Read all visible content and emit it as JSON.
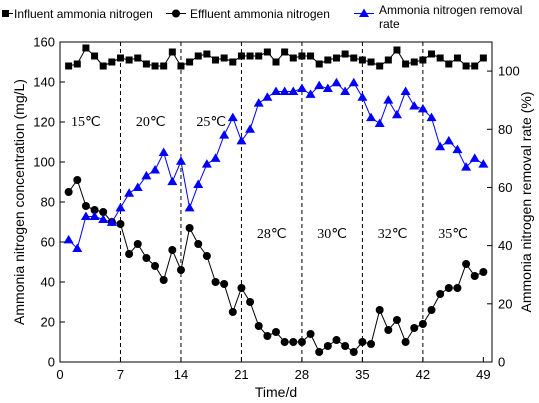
{
  "chart_data": {
    "type": "line",
    "xlabel": "Time/d",
    "ylabel_left": "Ammonia nitrogen concentration (mg/L)",
    "ylabel_right": "Ammonia nitrogen removal rate (%)",
    "xlim": [
      0,
      50
    ],
    "ylim_left": [
      0,
      160
    ],
    "ylim_right": [
      0,
      110
    ],
    "x_ticks": [
      0,
      7,
      14,
      21,
      28,
      35,
      42,
      49
    ],
    "y_ticks_left": [
      0,
      20,
      40,
      60,
      80,
      100,
      120,
      140,
      160
    ],
    "y_ticks_right": [
      0,
      20,
      40,
      60,
      80,
      100
    ],
    "legend": [
      {
        "label": "Influent ammonia nitrogen",
        "marker": "square",
        "color": "#000000"
      },
      {
        "label": "Effluent ammonia nitrogen",
        "marker": "circle",
        "color": "#000000"
      },
      {
        "label_line1": "Ammonia nitrogen removal",
        "label_line2": "rate",
        "marker": "triangle",
        "color": "#0000ff"
      }
    ],
    "phase_boundaries": [
      7,
      14,
      21,
      28,
      35,
      42
    ],
    "phase_labels": [
      {
        "text": "15℃",
        "x": 3,
        "y_left": 118
      },
      {
        "text": "20℃",
        "x": 10.5,
        "y_left": 118
      },
      {
        "text": "25℃",
        "x": 17.5,
        "y_left": 118
      },
      {
        "text": "28℃",
        "x": 24.5,
        "y_left": 62
      },
      {
        "text": "30℃",
        "x": 31.5,
        "y_left": 62
      },
      {
        "text": "32℃",
        "x": 38.5,
        "y_left": 62
      },
      {
        "text": "35℃",
        "x": 45.5,
        "y_left": 62
      }
    ],
    "series": [
      {
        "name": "Influent ammonia nitrogen",
        "axis": "left",
        "marker": "square",
        "color": "#000000",
        "x": [
          1,
          2,
          3,
          4,
          5,
          6,
          7,
          8,
          9,
          10,
          11,
          12,
          13,
          14,
          15,
          16,
          17,
          18,
          19,
          20,
          21,
          22,
          23,
          24,
          25,
          26,
          27,
          28,
          29,
          30,
          31,
          32,
          33,
          34,
          35,
          36,
          37,
          38,
          39,
          40,
          41,
          42,
          43,
          44,
          45,
          46,
          47,
          48,
          49
        ],
        "y": [
          148,
          149,
          157,
          153,
          148,
          150,
          152,
          151,
          152,
          149,
          148,
          148,
          155,
          148,
          150,
          153,
          154,
          151,
          152,
          150,
          153,
          153,
          153,
          155,
          150,
          155,
          152,
          153,
          153,
          149,
          151,
          152,
          154,
          152,
          151,
          150,
          148,
          151,
          156,
          149,
          150,
          151,
          154,
          152,
          149,
          152,
          148,
          148,
          152
        ]
      },
      {
        "name": "Effluent ammonia nitrogen",
        "axis": "left",
        "marker": "circle",
        "color": "#000000",
        "x": [
          1,
          2,
          3,
          4,
          5,
          6,
          7,
          8,
          9,
          10,
          11,
          12,
          13,
          14,
          15,
          16,
          17,
          18,
          19,
          20,
          21,
          22,
          23,
          24,
          25,
          26,
          27,
          28,
          29,
          30,
          31,
          32,
          33,
          34,
          35,
          36,
          37,
          38,
          39,
          40,
          41,
          42,
          43,
          44,
          45,
          46,
          47,
          48,
          49
        ],
        "y": [
          85,
          91,
          78,
          76,
          75,
          70,
          69,
          54,
          59,
          52,
          48,
          41,
          56,
          46,
          67,
          59,
          53,
          40,
          39,
          25,
          37,
          30,
          18,
          13,
          15,
          10,
          10,
          10,
          14,
          5,
          8,
          11,
          8,
          5,
          10,
          9,
          26,
          16,
          21,
          10,
          17,
          19,
          26,
          34,
          37,
          37,
          49,
          43,
          45
        ]
      },
      {
        "name": "Ammonia nitrogen removal rate",
        "axis": "right",
        "marker": "triangle",
        "color": "#0000ff",
        "x": [
          1,
          2,
          3,
          4,
          5,
          6,
          7,
          8,
          9,
          10,
          11,
          12,
          13,
          14,
          15,
          16,
          17,
          18,
          19,
          20,
          21,
          22,
          23,
          24,
          25,
          26,
          27,
          28,
          29,
          30,
          31,
          32,
          33,
          34,
          35,
          36,
          37,
          38,
          39,
          40,
          41,
          42,
          43,
          44,
          45,
          46,
          47,
          48,
          49
        ],
        "y": [
          42,
          39,
          50,
          50,
          49,
          48,
          53,
          58,
          60,
          64,
          66,
          72,
          62,
          69,
          53,
          61,
          68,
          70,
          78,
          84,
          76,
          80,
          89,
          91,
          93,
          93,
          93,
          94,
          92,
          95,
          94,
          96,
          93,
          96,
          91,
          84,
          82,
          90,
          85,
          93,
          88,
          87,
          84,
          74,
          76,
          73,
          67,
          70,
          68
        ]
      }
    ]
  }
}
